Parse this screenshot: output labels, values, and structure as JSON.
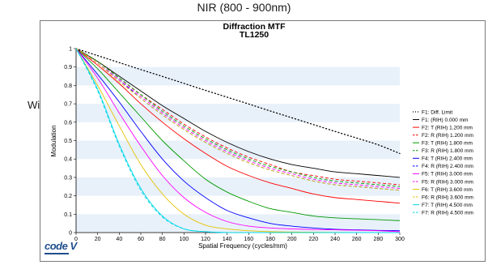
{
  "page": {
    "heading": "NIR (800 - 900nm)",
    "row_label": "Wide",
    "logo_text": "code V"
  },
  "chart_data": {
    "type": "line",
    "title": "Diffraction MTF",
    "subtitle": "TL1250",
    "xlabel": "Spatial Frequency (cycles/mm)",
    "ylabel": "Modulation",
    "xlim": [
      0,
      300
    ],
    "ylim": [
      0,
      1
    ],
    "x_ticks": [
      0,
      20,
      40,
      60,
      80,
      100,
      120,
      140,
      160,
      180,
      200,
      220,
      240,
      260,
      280,
      300
    ],
    "y_ticks": [
      0,
      0.1,
      0.2,
      0.3,
      0.4,
      0.5,
      0.6,
      0.7,
      0.8,
      0.9,
      1
    ],
    "grid": "alternating horizontal bands",
    "legend_position": "right",
    "x": [
      0,
      20,
      40,
      60,
      80,
      100,
      120,
      140,
      160,
      180,
      200,
      220,
      240,
      260,
      280,
      300
    ],
    "series": [
      {
        "name": "F1: Diff. Limit",
        "color": "#000000",
        "dash": "dot",
        "values": [
          1.0,
          0.962,
          0.924,
          0.886,
          0.849,
          0.811,
          0.773,
          0.736,
          0.699,
          0.661,
          0.624,
          0.587,
          0.55,
          0.514,
          0.477,
          0.43
        ]
      },
      {
        "name": "F1: (RIH) 0.000 mm",
        "color": "#000000",
        "dash": "solid",
        "values": [
          1.0,
          0.93,
          0.85,
          0.77,
          0.69,
          0.62,
          0.55,
          0.49,
          0.44,
          0.4,
          0.37,
          0.35,
          0.33,
          0.32,
          0.31,
          0.3
        ]
      },
      {
        "name": "F2: T (RIH) 1.200 mm",
        "color": "#ff0000",
        "dash": "solid",
        "values": [
          1.0,
          0.91,
          0.81,
          0.7,
          0.6,
          0.51,
          0.43,
          0.36,
          0.31,
          0.27,
          0.24,
          0.21,
          0.19,
          0.18,
          0.17,
          0.16
        ]
      },
      {
        "name": "F2: R (RIH) 1.200 mm",
        "color": "#ff0000",
        "dash": "dash",
        "values": [
          1.0,
          0.93,
          0.84,
          0.75,
          0.67,
          0.59,
          0.52,
          0.46,
          0.41,
          0.37,
          0.33,
          0.31,
          0.29,
          0.28,
          0.27,
          0.26
        ]
      },
      {
        "name": "F3: T (RIH) 1.800 mm",
        "color": "#009900",
        "dash": "solid",
        "values": [
          1.0,
          0.89,
          0.76,
          0.63,
          0.5,
          0.39,
          0.29,
          0.22,
          0.17,
          0.13,
          0.11,
          0.09,
          0.08,
          0.075,
          0.07,
          0.065
        ]
      },
      {
        "name": "F3: R (RIH) 1.800 mm",
        "color": "#009900",
        "dash": "dash",
        "values": [
          1.0,
          0.93,
          0.84,
          0.75,
          0.66,
          0.58,
          0.51,
          0.45,
          0.4,
          0.36,
          0.33,
          0.3,
          0.28,
          0.27,
          0.26,
          0.25
        ]
      },
      {
        "name": "F4: T (RIH) 2.400 mm",
        "color": "#0000ff",
        "dash": "solid",
        "values": [
          1.0,
          0.86,
          0.71,
          0.55,
          0.4,
          0.28,
          0.19,
          0.12,
          0.08,
          0.05,
          0.035,
          0.025,
          0.018,
          0.015,
          0.012,
          0.01
        ]
      },
      {
        "name": "F4: R (RIH) 2.400 mm",
        "color": "#0000ff",
        "dash": "dash",
        "values": [
          1.0,
          0.92,
          0.83,
          0.73,
          0.64,
          0.56,
          0.49,
          0.43,
          0.38,
          0.34,
          0.31,
          0.28,
          0.26,
          0.25,
          0.24,
          0.23
        ]
      },
      {
        "name": "F5: T (RIH) 3.000 mm",
        "color": "#ff00ff",
        "dash": "solid",
        "values": [
          1.0,
          0.84,
          0.65,
          0.47,
          0.31,
          0.19,
          0.11,
          0.06,
          0.035,
          0.025,
          0.02,
          0.017,
          0.015,
          0.013,
          0.01,
          0.005
        ]
      },
      {
        "name": "F5: R (RIH) 3.000 mm",
        "color": "#ff00ff",
        "dash": "dash",
        "values": [
          1.0,
          0.92,
          0.83,
          0.74,
          0.65,
          0.57,
          0.5,
          0.44,
          0.39,
          0.35,
          0.32,
          0.29,
          0.27,
          0.26,
          0.25,
          0.24
        ]
      },
      {
        "name": "F6: T (RIH) 3.600 mm",
        "color": "#e6c200",
        "dash": "solid",
        "values": [
          1.0,
          0.8,
          0.58,
          0.37,
          0.21,
          0.1,
          0.04,
          0.02,
          0.01,
          0.005,
          0.003,
          0.002,
          0.001,
          0.0,
          0.0,
          0.0
        ]
      },
      {
        "name": "F6: R (RIH) 3.600 mm",
        "color": "#e6c200",
        "dash": "dash",
        "values": [
          1.0,
          0.92,
          0.82,
          0.73,
          0.64,
          0.56,
          0.49,
          0.43,
          0.38,
          0.34,
          0.31,
          0.28,
          0.26,
          0.25,
          0.24,
          0.23
        ]
      },
      {
        "name": "F7: T (RIH) 4.500 mm",
        "color": "#00d8e8",
        "dash": "solid",
        "values": [
          1.0,
          0.78,
          0.48,
          0.24,
          0.09,
          0.02,
          0.005,
          0.0,
          0.0,
          0.0,
          0.0,
          0.0,
          0.0,
          0.0,
          0.0,
          0.0
        ]
      },
      {
        "name": "F7: R (RIH) 4.500 mm",
        "color": "#00d8e8",
        "dash": "dash",
        "values": [
          1.0,
          0.77,
          0.47,
          0.23,
          0.085,
          0.02,
          0.005,
          0.0,
          0.0,
          0.0,
          0.0,
          0.0,
          0.0,
          0.0,
          0.0,
          0.0
        ]
      }
    ]
  }
}
